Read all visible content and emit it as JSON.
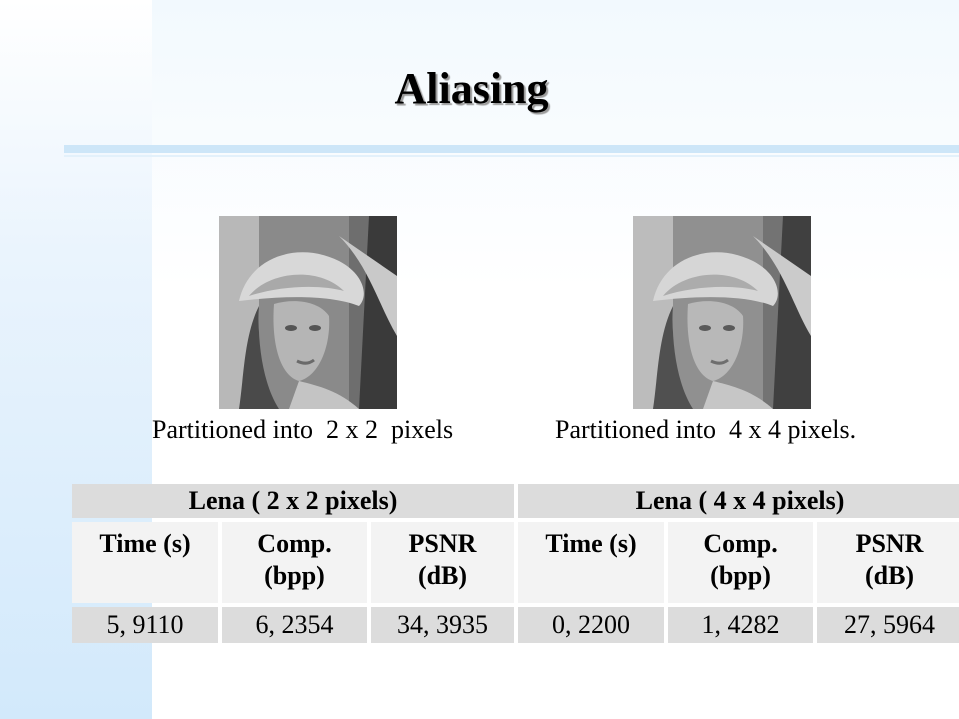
{
  "slide": {
    "title": "Aliasing"
  },
  "figures": [
    {
      "image": "lena-photo",
      "caption": "Partitioned into  2 x 2  pixels"
    },
    {
      "image": "lena-photo",
      "caption": "Partitioned into  4 x 4 pixels."
    }
  ],
  "table": {
    "groups": [
      {
        "title": "Lena ( 2 x 2 pixels)",
        "columns": [
          {
            "line1": "Time (s)",
            "line2": ""
          },
          {
            "line1": "Comp.",
            "line2": "(bpp)"
          },
          {
            "line1": "PSNR",
            "line2": "(dB)"
          }
        ],
        "values": [
          "5, 9110",
          "6, 2354",
          "34, 3935"
        ]
      },
      {
        "title": "Lena ( 4 x 4 pixels)",
        "columns": [
          {
            "line1": "Time (s)",
            "line2": ""
          },
          {
            "line1": "Comp.",
            "line2": "(bpp)"
          },
          {
            "line1": "PSNR",
            "line2": "(dB)"
          }
        ],
        "values": [
          "0, 2200",
          "1, 4282",
          "27, 5964"
        ]
      }
    ]
  }
}
